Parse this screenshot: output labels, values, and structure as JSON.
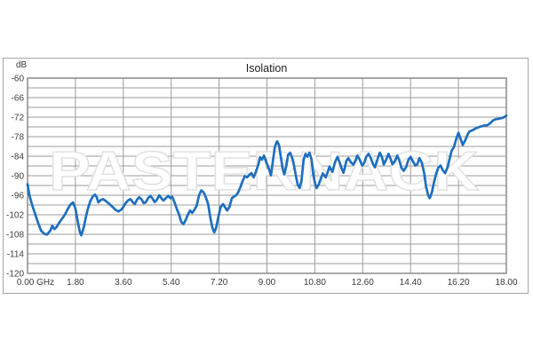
{
  "window": {
    "background": "#ffffff"
  },
  "watermark": {
    "text": "PASTERNACK",
    "outline_color": "#e1e1e1"
  },
  "colors": {
    "curve_blue": "#1e6fbd",
    "gridline": "#9b9b9b",
    "plot_border": "#7a7a7a",
    "outer_frame": "#a6a6a6",
    "tick_text": "#3b3b3b",
    "title_text": "#1f1f1f"
  },
  "chart_data": {
    "type": "line",
    "title": "Isolation",
    "ylabel": "dB",
    "xlabel": "",
    "x_unit": "GHz",
    "xlim": [
      0,
      18
    ],
    "ylim": [
      -120,
      -60
    ],
    "grid": "on",
    "legend": "none",
    "y_minor_step": 3,
    "x_tick_values": [
      0,
      1.8,
      3.6,
      5.4,
      7.2,
      9.0,
      10.8,
      12.6,
      14.4,
      16.2,
      18.0
    ],
    "x_tick_labels": [
      "0.00 GHz",
      "1.80",
      "3.60",
      "5.40",
      "7.20",
      "9.00",
      "10.80",
      "12.60",
      "14.40",
      "16.20",
      "18.00"
    ],
    "y_tick_values": [
      -60,
      -66,
      -72,
      -78,
      -84,
      -90,
      -96,
      -102,
      -108,
      -114,
      -120
    ],
    "y_tick_labels": [
      "-60",
      "-66",
      "-72",
      "-78",
      "-84",
      "-90",
      "-96",
      "-102",
      "-108",
      "-114",
      "-120"
    ],
    "series": [
      {
        "name": "Isolation",
        "color": "#1e6fbd",
        "points": [
          [
            0.0,
            -92.6
          ],
          [
            0.07,
            -96.0
          ],
          [
            0.18,
            -99.2
          ],
          [
            0.29,
            -101.9
          ],
          [
            0.4,
            -104.6
          ],
          [
            0.51,
            -106.9
          ],
          [
            0.62,
            -107.8
          ],
          [
            0.73,
            -108.1
          ],
          [
            0.85,
            -106.9
          ],
          [
            0.93,
            -105.4
          ],
          [
            1.01,
            -106.4
          ],
          [
            1.1,
            -105.7
          ],
          [
            1.18,
            -104.6
          ],
          [
            1.3,
            -103.2
          ],
          [
            1.41,
            -101.9
          ],
          [
            1.52,
            -100.1
          ],
          [
            1.63,
            -98.7
          ],
          [
            1.71,
            -98.2
          ],
          [
            1.8,
            -100.1
          ],
          [
            1.89,
            -104.2
          ],
          [
            1.97,
            -107.4
          ],
          [
            2.02,
            -108.3
          ],
          [
            2.11,
            -106.0
          ],
          [
            2.19,
            -102.8
          ],
          [
            2.27,
            -100.1
          ],
          [
            2.36,
            -97.8
          ],
          [
            2.45,
            -96.4
          ],
          [
            2.53,
            -95.8
          ],
          [
            2.6,
            -96.6
          ],
          [
            2.66,
            -98.2
          ],
          [
            2.75,
            -97.5
          ],
          [
            2.84,
            -97.2
          ],
          [
            2.95,
            -97.8
          ],
          [
            3.08,
            -98.7
          ],
          [
            3.2,
            -99.6
          ],
          [
            3.31,
            -100.5
          ],
          [
            3.42,
            -101.0
          ],
          [
            3.53,
            -100.4
          ],
          [
            3.6,
            -99.6
          ],
          [
            3.7,
            -98.3
          ],
          [
            3.79,
            -97.5
          ],
          [
            3.87,
            -97.2
          ],
          [
            3.95,
            -98.1
          ],
          [
            4.03,
            -98.7
          ],
          [
            4.12,
            -97.3
          ],
          [
            4.2,
            -96.6
          ],
          [
            4.29,
            -97.3
          ],
          [
            4.36,
            -98.4
          ],
          [
            4.44,
            -98.2
          ],
          [
            4.53,
            -96.9
          ],
          [
            4.62,
            -96.2
          ],
          [
            4.69,
            -96.9
          ],
          [
            4.78,
            -98.1
          ],
          [
            4.87,
            -97.3
          ],
          [
            4.95,
            -96.0
          ],
          [
            5.03,
            -96.9
          ],
          [
            5.11,
            -97.6
          ],
          [
            5.2,
            -96.9
          ],
          [
            5.29,
            -96.2
          ],
          [
            5.37,
            -96.9
          ],
          [
            5.44,
            -96.5
          ],
          [
            5.53,
            -98.3
          ],
          [
            5.62,
            -100.4
          ],
          [
            5.7,
            -102.0
          ],
          [
            5.78,
            -104.2
          ],
          [
            5.86,
            -104.9
          ],
          [
            5.94,
            -103.7
          ],
          [
            6.03,
            -101.9
          ],
          [
            6.11,
            -100.7
          ],
          [
            6.19,
            -101.4
          ],
          [
            6.27,
            -100.5
          ],
          [
            6.36,
            -99.2
          ],
          [
            6.45,
            -96.0
          ],
          [
            6.53,
            -94.5
          ],
          [
            6.62,
            -95.1
          ],
          [
            6.7,
            -96.5
          ],
          [
            6.79,
            -98.7
          ],
          [
            6.87,
            -102.8
          ],
          [
            6.95,
            -106.0
          ],
          [
            7.02,
            -107.4
          ],
          [
            7.09,
            -106.0
          ],
          [
            7.17,
            -102.8
          ],
          [
            7.26,
            -99.6
          ],
          [
            7.35,
            -98.7
          ],
          [
            7.42,
            -99.6
          ],
          [
            7.5,
            -100.7
          ],
          [
            7.59,
            -99.6
          ],
          [
            7.68,
            -96.9
          ],
          [
            7.76,
            -96.4
          ],
          [
            7.84,
            -96.0
          ],
          [
            7.92,
            -95.1
          ],
          [
            8.01,
            -93.3
          ],
          [
            8.09,
            -91.5
          ],
          [
            8.17,
            -90.1
          ],
          [
            8.26,
            -90.5
          ],
          [
            8.35,
            -89.6
          ],
          [
            8.42,
            -89.2
          ],
          [
            8.5,
            -90.5
          ],
          [
            8.59,
            -88.7
          ],
          [
            8.68,
            -86.5
          ],
          [
            8.74,
            -84.3
          ],
          [
            8.81,
            -85.1
          ],
          [
            8.89,
            -83.8
          ],
          [
            8.98,
            -86.0
          ],
          [
            9.07,
            -87.8
          ],
          [
            9.15,
            -89.9
          ],
          [
            9.23,
            -85.1
          ],
          [
            9.3,
            -81.0
          ],
          [
            9.38,
            -79.4
          ],
          [
            9.45,
            -80.5
          ],
          [
            9.52,
            -84.2
          ],
          [
            9.59,
            -87.8
          ],
          [
            9.65,
            -89.6
          ],
          [
            9.73,
            -86.9
          ],
          [
            9.79,
            -83.7
          ],
          [
            9.87,
            -82.9
          ],
          [
            9.95,
            -84.6
          ],
          [
            10.02,
            -86.9
          ],
          [
            10.1,
            -90.5
          ],
          [
            10.16,
            -92.8
          ],
          [
            10.23,
            -93.8
          ],
          [
            10.3,
            -91.5
          ],
          [
            10.38,
            -85.1
          ],
          [
            10.45,
            -83.3
          ],
          [
            10.52,
            -84.2
          ],
          [
            10.6,
            -82.9
          ],
          [
            10.68,
            -85.1
          ],
          [
            10.74,
            -89.6
          ],
          [
            10.81,
            -92.4
          ],
          [
            10.87,
            -93.8
          ],
          [
            10.95,
            -92.6
          ],
          [
            11.02,
            -91.0
          ],
          [
            11.1,
            -89.3
          ],
          [
            11.21,
            -90.5
          ],
          [
            11.28,
            -89.0
          ],
          [
            11.35,
            -87.2
          ],
          [
            11.46,
            -88.8
          ],
          [
            11.56,
            -85.8
          ],
          [
            11.65,
            -84.2
          ],
          [
            11.73,
            -85.8
          ],
          [
            11.81,
            -87.8
          ],
          [
            11.88,
            -89.1
          ],
          [
            11.99,
            -85.4
          ],
          [
            12.06,
            -84.6
          ],
          [
            12.16,
            -85.9
          ],
          [
            12.25,
            -86.6
          ],
          [
            12.33,
            -85.3
          ],
          [
            12.4,
            -83.8
          ],
          [
            12.49,
            -85.1
          ],
          [
            12.58,
            -86.9
          ],
          [
            12.66,
            -86.0
          ],
          [
            12.73,
            -84.2
          ],
          [
            12.82,
            -83.3
          ],
          [
            12.9,
            -84.5
          ],
          [
            12.99,
            -86.5
          ],
          [
            13.06,
            -87.4
          ],
          [
            13.15,
            -85.1
          ],
          [
            13.24,
            -82.9
          ],
          [
            13.32,
            -84.2
          ],
          [
            13.39,
            -86.5
          ],
          [
            13.48,
            -85.1
          ],
          [
            13.57,
            -83.3
          ],
          [
            13.64,
            -84.6
          ],
          [
            13.72,
            -86.5
          ],
          [
            13.81,
            -85.6
          ],
          [
            13.9,
            -83.8
          ],
          [
            13.97,
            -85.1
          ],
          [
            14.05,
            -87.4
          ],
          [
            14.14,
            -88.5
          ],
          [
            14.23,
            -87.4
          ],
          [
            14.32,
            -85.1
          ],
          [
            14.4,
            -84.2
          ],
          [
            14.49,
            -85.6
          ],
          [
            14.58,
            -86.9
          ],
          [
            14.65,
            -86.5
          ],
          [
            14.73,
            -84.6
          ],
          [
            14.82,
            -86.0
          ],
          [
            14.91,
            -89.2
          ],
          [
            14.98,
            -93.3
          ],
          [
            15.06,
            -96.0
          ],
          [
            15.12,
            -96.9
          ],
          [
            15.2,
            -95.1
          ],
          [
            15.28,
            -91.9
          ],
          [
            15.37,
            -89.2
          ],
          [
            15.45,
            -87.4
          ],
          [
            15.53,
            -86.9
          ],
          [
            15.61,
            -88.3
          ],
          [
            15.7,
            -89.2
          ],
          [
            15.79,
            -87.4
          ],
          [
            15.86,
            -85.1
          ],
          [
            15.94,
            -82.4
          ],
          [
            16.03,
            -81.2
          ],
          [
            16.13,
            -78.3
          ],
          [
            16.2,
            -76.8
          ],
          [
            16.28,
            -78.7
          ],
          [
            16.36,
            -80.5
          ],
          [
            16.45,
            -79.2
          ],
          [
            16.54,
            -77.4
          ],
          [
            16.61,
            -76.4
          ],
          [
            16.73,
            -76.0
          ],
          [
            16.84,
            -75.5
          ],
          [
            16.95,
            -75.1
          ],
          [
            17.06,
            -74.8
          ],
          [
            17.17,
            -74.6
          ],
          [
            17.28,
            -74.5
          ],
          [
            17.39,
            -73.9
          ],
          [
            17.5,
            -73.0
          ],
          [
            17.61,
            -72.6
          ],
          [
            17.72,
            -72.5
          ],
          [
            17.83,
            -72.3
          ],
          [
            17.94,
            -71.9
          ],
          [
            18.0,
            -71.5
          ]
        ]
      }
    ]
  }
}
